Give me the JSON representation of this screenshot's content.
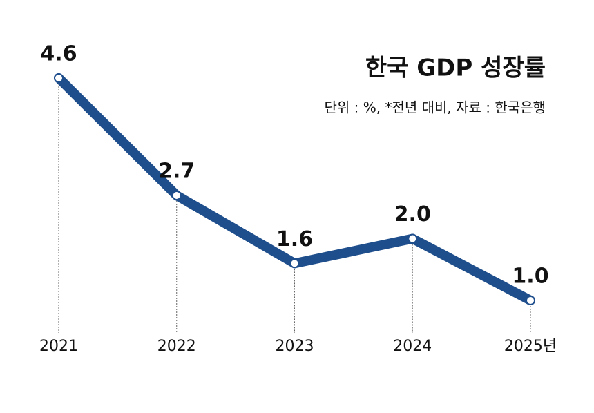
{
  "chart_data": {
    "type": "line",
    "title": "한국 GDP 성장률",
    "subtitle": "단위 : %, *전년 대비, 자료 : 한국은행",
    "categories": [
      "2021",
      "2022",
      "2023",
      "2024",
      "2025년"
    ],
    "values": [
      4.6,
      2.7,
      1.6,
      2.0,
      1.0
    ],
    "value_labels": [
      "4.6",
      "2.7",
      "1.6",
      "2.0",
      "1.0"
    ],
    "color": "#1f4e8c"
  }
}
